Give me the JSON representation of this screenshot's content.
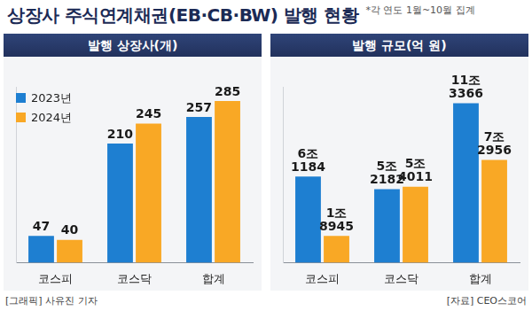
{
  "title": "상장사 주식연계채권(EB·CB·BW) 발행 현황",
  "note": "*각 연도 1월~10월 집계",
  "footer": {
    "left": "[그래픽] 사유진 기자",
    "right": "[자료] CEO스코어"
  },
  "chart_data": [
    {
      "type": "bar",
      "title": "발행 상장사(개)",
      "categories": [
        "코스피",
        "코스닥",
        "합계"
      ],
      "series": [
        {
          "name": "2023년",
          "color": "#1e7fd1",
          "values": [
            47,
            210,
            257
          ]
        },
        {
          "name": "2024년",
          "color": "#f9a825",
          "values": [
            40,
            245,
            285
          ]
        }
      ],
      "ylim": [
        0,
        310
      ],
      "grid": false,
      "data_labels": true,
      "tick_labels": "x",
      "legend": "upper left"
    },
    {
      "type": "bar",
      "title": "발행 규모(억 원)",
      "categories": [
        "코스피",
        "코스닥",
        "합계"
      ],
      "series": [
        {
          "name": "2023년",
          "color": "#1e7fd1",
          "values": [
            61184,
            52182,
            113366
          ],
          "value_labels": [
            "6조 1184",
            "5조 2182",
            "11조 3366"
          ]
        },
        {
          "name": "2024년",
          "color": "#f9a825",
          "values": [
            18945,
            54011,
            72956
          ],
          "value_labels": [
            "1조 8945",
            "5조 4011",
            "7조 2956"
          ]
        }
      ],
      "ylim": [
        0,
        125000
      ],
      "grid": false,
      "data_labels": true,
      "tick_labels": "x"
    }
  ]
}
